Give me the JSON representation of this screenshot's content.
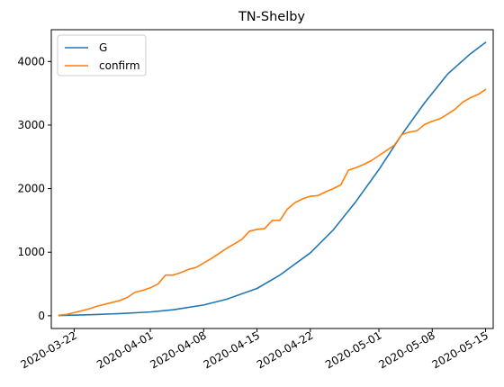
{
  "chart_data": {
    "type": "line",
    "title": "TN-Shelby",
    "xlabel": "",
    "ylabel": "",
    "grid": false,
    "legend_position": "top-left",
    "x_range": [
      "2020-03-19",
      "2020-05-16"
    ],
    "ylim": [
      -200,
      4500
    ],
    "y_ticks": [
      0,
      1000,
      2000,
      3000,
      4000
    ],
    "x_ticks": [
      "2020-03-22",
      "2020-04-01",
      "2020-04-08",
      "2020-04-15",
      "2020-04-22",
      "2020-05-01",
      "2020-05-08",
      "2020-05-15"
    ],
    "series": [
      {
        "name": "G",
        "color": "#1f77b4",
        "x": [
          "2020-03-20",
          "2020-03-22",
          "2020-03-25",
          "2020-03-28",
          "2020-04-01",
          "2020-04-04",
          "2020-04-08",
          "2020-04-11",
          "2020-04-15",
          "2020-04-18",
          "2020-04-22",
          "2020-04-25",
          "2020-04-28",
          "2020-05-01",
          "2020-05-04",
          "2020-05-07",
          "2020-05-10",
          "2020-05-13",
          "2020-05-15"
        ],
        "y": [
          5,
          10,
          20,
          35,
          60,
          95,
          170,
          260,
          430,
          640,
          990,
          1350,
          1800,
          2300,
          2850,
          3350,
          3800,
          4120,
          4300
        ]
      },
      {
        "name": "confirm",
        "color": "#ff7f0e",
        "x": [
          "2020-03-20",
          "2020-03-21",
          "2020-03-22",
          "2020-03-23",
          "2020-03-24",
          "2020-03-25",
          "2020-03-26",
          "2020-03-27",
          "2020-03-28",
          "2020-03-29",
          "2020-03-30",
          "2020-03-31",
          "2020-04-01",
          "2020-04-02",
          "2020-04-03",
          "2020-04-04",
          "2020-04-05",
          "2020-04-06",
          "2020-04-07",
          "2020-04-08",
          "2020-04-09",
          "2020-04-10",
          "2020-04-11",
          "2020-04-12",
          "2020-04-13",
          "2020-04-14",
          "2020-04-15",
          "2020-04-16",
          "2020-04-17",
          "2020-04-18",
          "2020-04-19",
          "2020-04-20",
          "2020-04-21",
          "2020-04-22",
          "2020-04-23",
          "2020-04-24",
          "2020-04-25",
          "2020-04-26",
          "2020-04-27",
          "2020-04-28",
          "2020-04-29",
          "2020-04-30",
          "2020-05-01",
          "2020-05-02",
          "2020-05-03",
          "2020-05-04",
          "2020-05-05",
          "2020-05-06",
          "2020-05-07",
          "2020-05-08",
          "2020-05-09",
          "2020-05-10",
          "2020-05-11",
          "2020-05-12",
          "2020-05-13",
          "2020-05-14",
          "2020-05-15"
        ],
        "y": [
          10,
          20,
          50,
          80,
          110,
          150,
          180,
          210,
          240,
          290,
          370,
          400,
          440,
          500,
          640,
          640,
          680,
          730,
          760,
          830,
          900,
          980,
          1060,
          1130,
          1200,
          1330,
          1360,
          1370,
          1500,
          1500,
          1680,
          1780,
          1840,
          1880,
          1890,
          1950,
          2000,
          2060,
          2290,
          2330,
          2380,
          2440,
          2520,
          2600,
          2680,
          2850,
          2890,
          2910,
          3010,
          3060,
          3100,
          3170,
          3250,
          3360,
          3430,
          3480,
          3560
        ]
      }
    ]
  }
}
